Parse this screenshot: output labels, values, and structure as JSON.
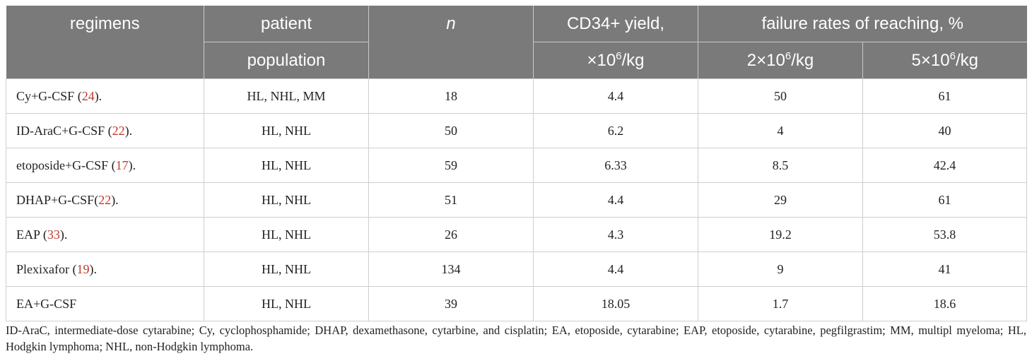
{
  "header": {
    "col_regimens": "regimens",
    "col_patient_top": "patient",
    "col_patient_bottom": "population",
    "col_n": "n",
    "col_yield_top": "CD34+ yield,",
    "col_yield_bottom_prefix": "×10",
    "col_yield_bottom_exp": "6",
    "col_yield_bottom_suffix": "/kg",
    "col_failure": "failure rates of reaching, %",
    "sub_2_prefix": "2×10",
    "sub_2_exp": "6",
    "sub_2_suffix": "/kg",
    "sub_5_prefix": "5×10",
    "sub_5_exp": "6",
    "sub_5_suffix": "/kg"
  },
  "rows": [
    {
      "regimen": "Cy+G-CSF ",
      "ref_open": "(",
      "ref": "24",
      "ref_close": ").",
      "population": "HL, NHL, MM",
      "n": "18",
      "yield": "4.4",
      "fail2": "50",
      "fail5": "61"
    },
    {
      "regimen": "ID-AraC+G-CSF ",
      "ref_open": "(",
      "ref": "22",
      "ref_close": ").",
      "population": "HL, NHL",
      "n": "50",
      "yield": "6.2",
      "fail2": "4",
      "fail5": "40"
    },
    {
      "regimen": "etoposide+G-CSF ",
      "ref_open": "(",
      "ref": "17",
      "ref_close": ").",
      "population": "HL, NHL",
      "n": "59",
      "yield": "6.33",
      "fail2": "8.5",
      "fail5": "42.4"
    },
    {
      "regimen": "DHAP+G-CSF",
      "ref_open": "(",
      "ref": "22",
      "ref_close": ").",
      "population": "HL, NHL",
      "n": "51",
      "yield": "4.4",
      "fail2": "29",
      "fail5": "61"
    },
    {
      "regimen": "EAP ",
      "ref_open": "(",
      "ref": "33",
      "ref_close": ").",
      "population": "HL, NHL",
      "n": "26",
      "yield": "4.3",
      "fail2": "19.2",
      "fail5": "53.8"
    },
    {
      "regimen": "Plexixafor ",
      "ref_open": "(",
      "ref": "19",
      "ref_close": ").",
      "population": "HL, NHL",
      "n": "134",
      "yield": "4.4",
      "fail2": "9",
      "fail5": "41"
    },
    {
      "regimen": "EA+G-CSF",
      "ref_open": "",
      "ref": "",
      "ref_close": "",
      "population": "HL, NHL",
      "n": "39",
      "yield": "18.05",
      "fail2": "1.7",
      "fail5": "18.6"
    }
  ],
  "footnote": "ID-AraC, intermediate-dose cytarabine; Cy, cyclophosphamide; DHAP, dexamethasone, cytarbine, and cisplatin; EA, etoposide, cytarabine; EAP, etoposide, cytarabine, pegfilgrastim; MM, multipl myeloma; HL, Hodgkin lymphoma; NHL, non-Hodgkin lymphoma."
}
